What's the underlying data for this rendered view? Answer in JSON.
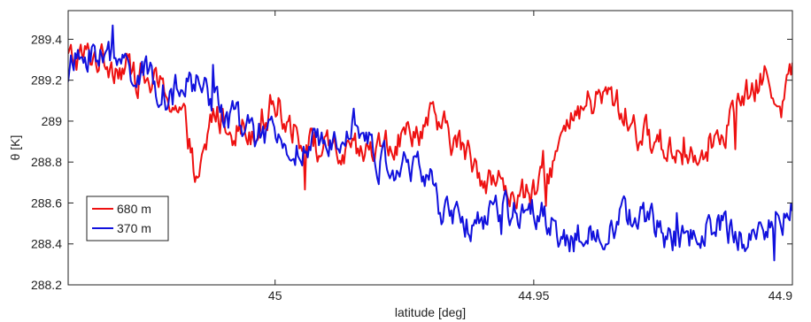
{
  "chart_data": {
    "type": "line",
    "xlabel": "latitude [deg]",
    "ylabel": "θ [K]",
    "xlim": [
      45.04,
      44.9
    ],
    "ylim": [
      288.2,
      289.54
    ],
    "x_reversed": true,
    "grid": false,
    "legend_position": "lower-left",
    "x_ticks": [
      45,
      44.95,
      44.9
    ],
    "x_tick_labels": [
      "45",
      "44.95",
      "44.9"
    ],
    "y_ticks": [
      288.2,
      288.4,
      288.6,
      288.8,
      289,
      289.2,
      289.4
    ],
    "y_tick_labels": [
      "288.2",
      "288.4",
      "288.6",
      "288.8",
      "289",
      "289.2",
      "289.4"
    ],
    "series": [
      {
        "name": "680 m",
        "color": "#ee1111",
        "x": [
          45.04,
          45.035,
          45.03,
          45.025,
          45.02,
          45.017,
          45.015,
          45.012,
          45.01,
          45.005,
          45.0,
          44.995,
          44.99,
          44.985,
          44.98,
          44.975,
          44.97,
          44.965,
          44.96,
          44.955,
          44.95,
          44.945,
          44.94,
          44.935,
          44.93,
          44.925,
          44.92,
          44.915,
          44.91,
          44.905,
          44.902,
          44.9
        ],
        "values": [
          289.3,
          289.32,
          289.28,
          289.2,
          289.12,
          288.95,
          288.65,
          289.05,
          289.0,
          288.95,
          289.1,
          288.92,
          288.85,
          288.82,
          288.86,
          288.92,
          289.0,
          288.9,
          288.75,
          288.66,
          288.62,
          288.88,
          289.08,
          289.12,
          288.95,
          288.88,
          288.85,
          288.92,
          289.08,
          289.22,
          289.1,
          289.25
        ]
      },
      {
        "name": "370 m",
        "color": "#1111dd",
        "x": [
          45.04,
          45.035,
          45.03,
          45.025,
          45.02,
          45.015,
          45.01,
          45.005,
          45.0,
          44.995,
          44.99,
          44.985,
          44.98,
          44.975,
          44.97,
          44.968,
          44.965,
          44.96,
          44.955,
          44.95,
          44.945,
          44.94,
          44.935,
          44.93,
          44.925,
          44.92,
          44.915,
          44.91,
          44.905,
          44.9
        ],
        "values": [
          289.25,
          289.35,
          289.28,
          289.22,
          289.12,
          289.2,
          289.05,
          288.95,
          288.9,
          288.85,
          288.88,
          289.05,
          288.8,
          288.78,
          288.74,
          288.55,
          288.5,
          288.52,
          288.55,
          288.6,
          288.45,
          288.42,
          288.5,
          288.55,
          288.45,
          288.42,
          288.5,
          288.42,
          288.5,
          288.55
        ]
      }
    ]
  }
}
